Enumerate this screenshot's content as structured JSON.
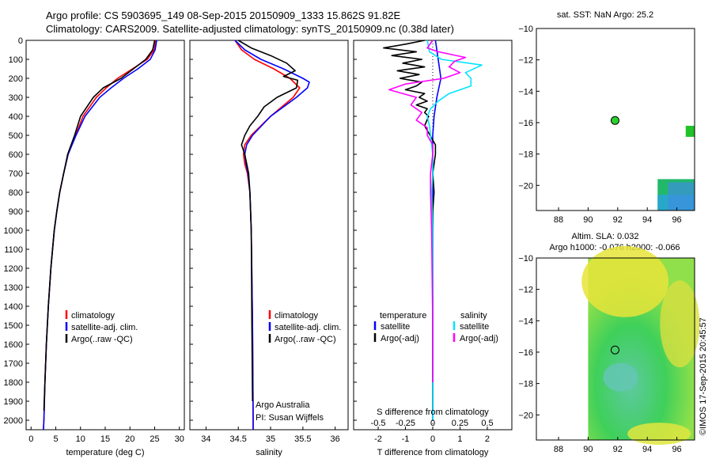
{
  "header": {
    "line1": "Argo profile: CS 5903695_149 08-Sep-2015 20150909_1333 15.862S 91.82E",
    "line2": "Climatology: CARS2009. Satellite-adjusted climatology: synTS_20150909.nc (0.38d later)"
  },
  "footer": {
    "timestamp": "©IMOS 17-Sep-2015 20:45:57",
    "credit1": "Argo Australia",
    "credit2": "PI: Susan Wijffels"
  },
  "colors": {
    "climatology": "#ff0000",
    "satellite": "#0000ff",
    "argo": "#000000",
    "sat_salinity": "#00e5ff",
    "argo_salinity": "#ff00ff"
  },
  "chart_data": [
    {
      "id": "temperature",
      "type": "line",
      "xlabel": "temperature (deg C)",
      "ylabel": "",
      "xlim": [
        -1,
        31
      ],
      "ylim": [
        2050,
        0
      ],
      "xticks": [
        "0",
        "5",
        "10",
        "15",
        "20",
        "25",
        "30"
      ],
      "xtick_values": [
        0,
        5,
        10,
        15,
        20,
        25,
        30
      ],
      "yticks": [
        "0",
        "100",
        "200",
        "300",
        "400",
        "500",
        "600",
        "700",
        "800",
        "900",
        "1000",
        "1100",
        "1200",
        "1300",
        "1400",
        "1500",
        "1600",
        "1700",
        "1800",
        "1900",
        "2000"
      ],
      "ytick_values": [
        0,
        100,
        200,
        300,
        400,
        500,
        600,
        700,
        800,
        900,
        1000,
        1100,
        1200,
        1300,
        1400,
        1500,
        1600,
        1700,
        1800,
        1900,
        2000
      ],
      "legend": [
        "climatology",
        "satellite-adj. clim.",
        "Argo(..raw -QC)"
      ],
      "series": [
        {
          "name": "climatology",
          "color": "#ff0000",
          "depth": [
            0,
            50,
            100,
            150,
            200,
            250,
            300,
            400,
            500,
            600,
            700,
            800,
            900,
            1000,
            1200,
            1400,
            1600,
            1800,
            2000,
            2050
          ],
          "values": [
            25.2,
            24.9,
            23.5,
            20.5,
            17.5,
            15.2,
            13.2,
            10.5,
            9.0,
            7.5,
            6.6,
            5.8,
            5.2,
            4.7,
            4.0,
            3.5,
            3.1,
            2.8,
            2.6,
            2.5
          ]
        },
        {
          "name": "satellite-adj. clim.",
          "color": "#0000ff",
          "depth": [
            0,
            50,
            100,
            150,
            200,
            250,
            300,
            400,
            500,
            600,
            700,
            800,
            900,
            1000,
            1200,
            1400,
            1600,
            1800,
            2000,
            2050
          ],
          "values": [
            25.4,
            25.1,
            24.1,
            21.6,
            18.7,
            16.2,
            13.9,
            10.9,
            9.1,
            7.5,
            6.6,
            5.8,
            5.2,
            4.7,
            4.0,
            3.5,
            3.1,
            2.8,
            2.6,
            2.5
          ]
        },
        {
          "name": "Argo(..raw -QC)",
          "color": "#000000",
          "depth": [
            0,
            50,
            100,
            150,
            200,
            250,
            300,
            400,
            500,
            600,
            700,
            800,
            900,
            1000,
            1200,
            1400,
            1600,
            1800,
            1950
          ],
          "values": [
            25.0,
            24.6,
            23.2,
            20.7,
            18.2,
            14.6,
            12.6,
            10.0,
            8.8,
            7.4,
            6.6,
            5.8,
            5.2,
            4.7,
            4.0,
            3.5,
            3.1,
            2.8,
            2.6
          ]
        }
      ]
    },
    {
      "id": "salinity",
      "type": "line",
      "xlabel": "salinity",
      "ylabel": "",
      "xlim": [
        33.75,
        36.2
      ],
      "ylim": [
        2050,
        0
      ],
      "xticks": [
        "34",
        "34.5",
        "35",
        "35.5",
        "36"
      ],
      "xtick_values": [
        34,
        34.5,
        35,
        35.5,
        36
      ],
      "legend": [
        "climatology",
        "satellite-adj. clim.",
        "Argo(..raw -QC)"
      ],
      "series": [
        {
          "name": "climatology",
          "color": "#ff0000",
          "depth": [
            0,
            50,
            100,
            150,
            200,
            250,
            300,
            400,
            500,
            550,
            600,
            650,
            700,
            800,
            1000,
            1500,
            2000,
            2050
          ],
          "values": [
            34.45,
            34.55,
            34.75,
            35.05,
            35.3,
            35.45,
            35.35,
            35.0,
            34.7,
            34.6,
            34.58,
            34.6,
            34.64,
            34.68,
            34.7,
            34.72,
            34.73,
            34.73
          ]
        },
        {
          "name": "satellite-adj. clim.",
          "color": "#0000ff",
          "depth": [
            0,
            50,
            100,
            150,
            200,
            220,
            250,
            300,
            400,
            500,
            550,
            600,
            650,
            700,
            800,
            1000,
            1500,
            2000,
            2050
          ],
          "values": [
            34.45,
            34.6,
            34.85,
            35.2,
            35.5,
            35.6,
            35.57,
            35.4,
            35.0,
            34.72,
            34.63,
            34.6,
            34.62,
            34.65,
            34.68,
            34.7,
            34.72,
            34.73,
            34.73
          ]
        },
        {
          "name": "Argo(..raw -QC)",
          "color": "#000000",
          "depth": [
            0,
            40,
            80,
            120,
            160,
            190,
            210,
            250,
            300,
            350,
            400,
            450,
            500,
            550,
            600,
            700,
            800,
            1000,
            1500,
            1900
          ],
          "values": [
            34.5,
            34.7,
            35.0,
            35.25,
            35.38,
            35.2,
            35.42,
            35.4,
            35.1,
            34.9,
            34.8,
            34.68,
            34.6,
            34.55,
            34.6,
            34.66,
            34.68,
            34.7,
            34.71,
            34.72
          ]
        }
      ]
    },
    {
      "id": "difference",
      "type": "line",
      "xlabel": "T difference from climatology",
      "xlabel_top": "S difference from climatology",
      "xlim": [
        -2.9,
        2.9
      ],
      "ylim": [
        2050,
        0
      ],
      "xticks": [
        "-2",
        "-1",
        "0",
        "1",
        "2"
      ],
      "xtick_values": [
        -2,
        -1,
        0,
        1,
        2
      ],
      "top_ticks": [
        "-0.5",
        "-0.25",
        "0",
        "0.25",
        "0.5"
      ],
      "top_tick_values": [
        -0.5,
        -0.25,
        0,
        0.25,
        0.5
      ],
      "legend_temperature": {
        "heading": "temperature",
        "items": [
          "satellite",
          "Argo(-adj)"
        ]
      },
      "legend_salinity": {
        "heading": "salinity",
        "items": [
          "satellite",
          "Argo(-adj)"
        ]
      },
      "series": [
        {
          "name": "temperature satellite",
          "color": "#0000ff",
          "depth": [
            0,
            100,
            200,
            300,
            400,
            500,
            600,
            800,
            1000,
            1500,
            2000
          ],
          "values": [
            0.1,
            0.2,
            0.3,
            0.15,
            0.05,
            0.0,
            0.0,
            0.0,
            0.0,
            0.0,
            0.0
          ]
        },
        {
          "name": "temperature Argo(-adj)",
          "color": "#000000",
          "depth": [
            0,
            20,
            40,
            60,
            80,
            100,
            120,
            140,
            160,
            180,
            200,
            220,
            240,
            260,
            280,
            300,
            320,
            340,
            360,
            380,
            400,
            450,
            500,
            550,
            600,
            700,
            800,
            900,
            1000,
            1200,
            1500,
            1800,
            1950
          ],
          "values": [
            -0.3,
            -1.0,
            -1.8,
            -0.6,
            -1.5,
            -0.4,
            -1.1,
            -0.3,
            -1.3,
            -0.5,
            -1.2,
            -0.4,
            -0.6,
            -1.0,
            -0.3,
            -0.5,
            -0.2,
            -0.6,
            -0.2,
            -0.3,
            -0.15,
            -0.3,
            -0.1,
            0.1,
            0.1,
            0.0,
            0.05,
            0.0,
            0.0,
            0.0,
            0.0,
            0.0,
            0.0
          ]
        },
        {
          "name": "salinity satellite",
          "color": "#00e5ff",
          "depth": [
            0,
            60,
            100,
            130,
            170,
            200,
            240,
            280,
            320,
            360,
            400,
            450,
            500,
            600,
            700,
            800,
            1000,
            1500,
            2000
          ],
          "values": [
            -0.05,
            -0.03,
            0.08,
            0.45,
            0.3,
            0.35,
            0.35,
            0.15,
            0.05,
            -0.02,
            -0.05,
            -0.03,
            -0.02,
            0.0,
            0.0,
            -0.01,
            0.0,
            0.0,
            0.0
          ]
        },
        {
          "name": "salinity Argo(-adj)",
          "color": "#ff00ff",
          "depth": [
            0,
            40,
            60,
            90,
            110,
            140,
            170,
            200,
            230,
            260,
            300,
            340,
            380,
            420,
            460,
            500,
            550,
            600,
            700,
            800,
            1000,
            1500,
            1800
          ],
          "values": [
            0.0,
            -0.05,
            0.05,
            0.3,
            0.2,
            0.15,
            0.25,
            0.1,
            -0.25,
            -0.4,
            -0.15,
            -0.2,
            -0.1,
            -0.15,
            -0.05,
            -0.05,
            0.0,
            0.0,
            -0.02,
            -0.02,
            -0.01,
            0.0,
            0.0
          ]
        }
      ]
    },
    {
      "id": "sst-map",
      "type": "heatmap",
      "title": "sat. SST: NaN Argo: 25.2",
      "xlim": [
        86.5,
        97.2
      ],
      "ylim": [
        -21.6,
        -10
      ],
      "xticks": [
        "88",
        "90",
        "92",
        "94",
        "96"
      ],
      "xtick_values": [
        88,
        90,
        92,
        94,
        96
      ],
      "yticks": [
        "−10",
        "−12",
        "−14",
        "−16",
        "−18",
        "−20"
      ],
      "ytick_values": [
        -10,
        -12,
        -14,
        -16,
        -18,
        -20
      ],
      "float_position": {
        "lon": 91.82,
        "lat": -15.862
      }
    },
    {
      "id": "sla-map",
      "type": "heatmap",
      "title": "Altim. SLA: 0.032",
      "subtitle": "Argo h1000: -0.076 h2000: -0.066",
      "xlim": [
        86.5,
        97.2
      ],
      "ylim": [
        -21.6,
        -10
      ],
      "xticks": [
        "88",
        "90",
        "92",
        "94",
        "96"
      ],
      "xtick_values": [
        88,
        90,
        92,
        94,
        96
      ],
      "yticks": [
        "−10",
        "−12",
        "−14",
        "−16",
        "−18",
        "−20"
      ],
      "ytick_values": [
        -10,
        -12,
        -14,
        -16,
        -18,
        -20
      ],
      "float_position": {
        "lon": 91.82,
        "lat": -15.862
      }
    }
  ]
}
